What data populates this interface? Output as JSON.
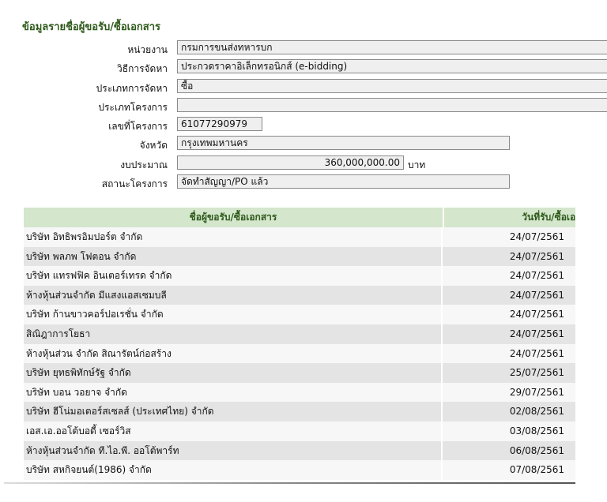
{
  "title": "ข้อมูลรายชื่อผู้ขอรับ/ซื้อเอกสาร",
  "fields": [
    {
      "label": "หน่วยงาน",
      "value": "กรมการขนส่งทหารบก"
    },
    {
      "label": "วิธีการจัดหา",
      "value": "ประกวดราคาอิเล็กทรอนิกส์ (e-bidding)"
    },
    {
      "label": "ประเภทการจัดหา",
      "value": "ซื้อ"
    },
    {
      "label": "ประเภทโครงการ",
      "value": ""
    },
    {
      "label": "เลขที่โครงการ",
      "value": "61077290979"
    },
    {
      "label": "จังหวัด",
      "value": "กรุงเทพมหานคร"
    },
    {
      "label": "งบประมาณ",
      "value": "360,000,000.00",
      "unit": "บาท"
    },
    {
      "label": "สถานะโครงการ",
      "value": "จัดทำสัญญา/PO แล้ว"
    }
  ],
  "table": {
    "headers": [
      "ชื่อผู้ขอรับ/ซื้อเอกสาร",
      "วันที่รับ/ซื้อเอกสาร"
    ],
    "rows": [
      [
        "บริษัท อิทธิพรอิมปอร์ต จำกัด",
        "24/07/2561"
      ],
      [
        "บริษัท พลภพ โฟตอน จำกัด",
        "24/07/2561"
      ],
      [
        "บริษัท แทรฟฟิค อินเตอร์เทรด จำกัด",
        "24/07/2561"
      ],
      [
        "ห้างหุ้นส่วนจำกัด มีแสงแอสเซมบลี",
        "24/07/2561"
      ],
      [
        "บริษัท ก้านขาวคอร์ปอเรชั่น จำกัด",
        "24/07/2561"
      ],
      [
        "สิณิฎาการโยธา",
        "24/07/2561"
      ],
      [
        "ห้างหุ้นส่วน จำกัด สิณารัตน์ก่อสร้าง",
        "24/07/2561"
      ],
      [
        "บริษัท ยุทธพิทักษ์รัฐ จำกัด",
        "25/07/2561"
      ],
      [
        "บริษัท บอน วอยาจ จำกัด",
        "29/07/2561"
      ],
      [
        "บริษัท ฮีโน่มอเตอร์สเซลส์ (ประเทศไทย) จำกัด",
        "02/08/2561"
      ],
      [
        "เอส.เอ.ออโต้บอดี้ เซอร์วิส",
        "03/08/2561"
      ],
      [
        "ห้างหุ้นส่วนจำกัด ที.ไอ.พี. ออโต้พาร์ท",
        "06/08/2561"
      ],
      [
        "บริษัท สหกิจยนต์(1986) จำกัด",
        "07/08/2561"
      ]
    ]
  }
}
